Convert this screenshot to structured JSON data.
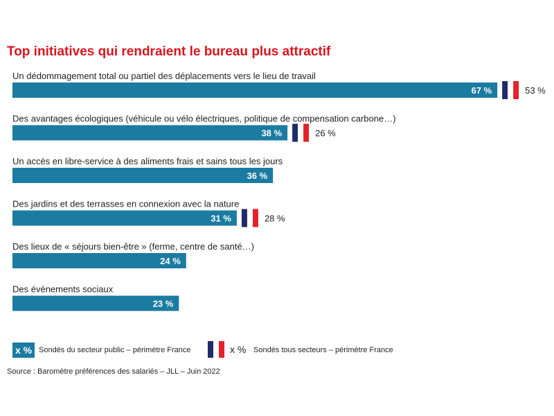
{
  "title": "Top initiatives qui rendraient le bureau plus attractif",
  "chart_data": {
    "type": "bar",
    "orientation": "horizontal",
    "title": "Top initiatives qui rendraient le bureau plus attractif",
    "categories": [
      "Un dédommagement total ou partiel des déplacements vers le lieu de travail",
      "Des avantages écologiques (véhicule ou vélo électriques, politique de compensation carbone…)",
      "Un accès en libre-service à des aliments frais et sains tous les jours",
      "Des jardins et des terrasses en connexion avec la nature",
      "Des lieux de « séjours bien-être » (ferme, centre de santé…)",
      "Des évènements sociaux"
    ],
    "series": [
      {
        "name": "Sondés du secteur public – périmètre France",
        "values": [
          67,
          38,
          36,
          31,
          24,
          23
        ],
        "labels": [
          "67 %",
          "38 %",
          "36 %",
          "31 %",
          "24 %",
          "23 %"
        ],
        "color": "#1b7ba1"
      },
      {
        "name": "Sondés tous secteurs – périmètre France",
        "values": [
          53,
          26,
          null,
          28,
          null,
          null
        ],
        "labels": [
          "53 %",
          "26 %",
          null,
          "28 %",
          null,
          null
        ]
      }
    ],
    "flag_colors": [
      "#1f2a6b",
      "#ffffff",
      "#e2232a"
    ]
  },
  "legend": {
    "public_symbol": "x %",
    "public_label": "Sondés du secteur public – périmètre France",
    "all_symbol": "x %",
    "all_label": "Sondés tous secteurs – périmètre France"
  },
  "source": "Source :  Baromètre préférences  des salariés – JLL – Juin 2022"
}
